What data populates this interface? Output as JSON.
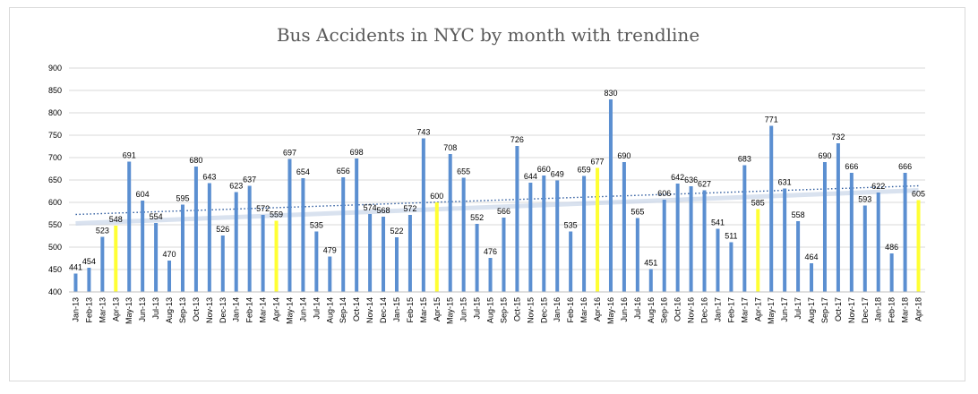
{
  "chart_data": {
    "type": "bar",
    "title": "Bus Accidents in NYC by month with trendline",
    "xlabel": "",
    "ylabel": "",
    "ylim": [
      400,
      900
    ],
    "yticks": [
      400,
      450,
      500,
      550,
      600,
      650,
      700,
      750,
      800,
      850,
      900
    ],
    "grid": true,
    "legend": "none",
    "colors": {
      "bar": "#5b8fd1",
      "highlight": "#ffff33",
      "trendline": "#2e5b9e",
      "grid": "#d9d9d9"
    },
    "highlighted_months": [
      "Apr-13",
      "Apr-14",
      "Apr-15",
      "Apr-16",
      "Apr-17",
      "Apr-18"
    ],
    "trendline": {
      "start": 573,
      "end": 637,
      "style": "dotted"
    },
    "categories": [
      "Jan-13",
      "Feb-13",
      "Mar-13",
      "Apr-13",
      "May-13",
      "Jun-13",
      "Jul-13",
      "Aug-13",
      "Sep-13",
      "Oct-13",
      "Nov-13",
      "Dec-13",
      "Jan-14",
      "Feb-14",
      "Mar-14",
      "Apr-14",
      "May-14",
      "Jun-14",
      "Jul-14",
      "Aug-14",
      "Sep-14",
      "Oct-14",
      "Nov-14",
      "Dec-14",
      "Jan-15",
      "Feb-15",
      "Mar-15",
      "Apr-15",
      "May-15",
      "Jun-15",
      "Jul-15",
      "Aug-15",
      "Sep-15",
      "Oct-15",
      "Nov-15",
      "Dec-15",
      "Jan-16",
      "Feb-16",
      "Mar-16",
      "Apr-16",
      "May-16",
      "Jun-16",
      "Jul-16",
      "Aug-16",
      "Sep-16",
      "Oct-16",
      "Nov-16",
      "Dec-16",
      "Jan-17",
      "Feb-17",
      "Mar-17",
      "Apr-17",
      "May-17",
      "Jun-17",
      "Jul-17",
      "Aug-17",
      "Sep-17",
      "Oct-17",
      "Nov-17",
      "Dec-17",
      "Jan-18",
      "Feb-18",
      "Mar-18",
      "Apr-18"
    ],
    "values": [
      441,
      454,
      523,
      548,
      691,
      604,
      554,
      470,
      595,
      680,
      643,
      526,
      623,
      637,
      572,
      559,
      697,
      654,
      535,
      479,
      656,
      698,
      574,
      568,
      522,
      572,
      743,
      600,
      708,
      655,
      552,
      476,
      566,
      726,
      644,
      660,
      649,
      535,
      659,
      677,
      830,
      690,
      565,
      451,
      606,
      642,
      636,
      627,
      541,
      511,
      683,
      585,
      771,
      631,
      558,
      464,
      690,
      732,
      666,
      593,
      622,
      486,
      666,
      605
    ]
  }
}
